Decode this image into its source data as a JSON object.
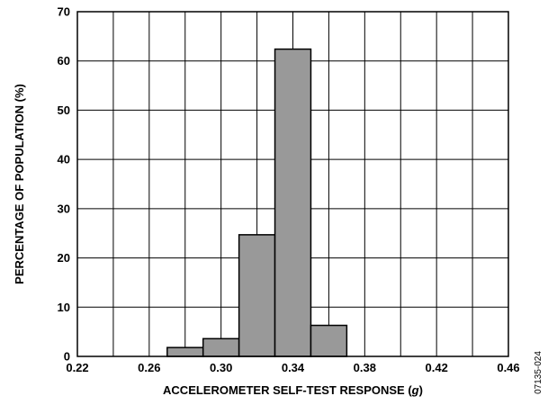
{
  "chart_data": {
    "type": "bar",
    "xlabel_prefix": "ACCELEROMETER SELF-TEST RESPONSE (",
    "xlabel_unit": "g",
    "xlabel_suffix": ")",
    "ylabel": "PERCENTAGE OF POPULATION (%)",
    "xlim": [
      0.22,
      0.46
    ],
    "ylim": [
      0,
      70
    ],
    "x_ticks": [
      0.22,
      0.26,
      0.3,
      0.34,
      0.38,
      0.42,
      0.46
    ],
    "x_tick_labels": [
      "0.22",
      "0.26",
      "0.30",
      "0.34",
      "0.38",
      "0.42",
      "0.46"
    ],
    "y_ticks": [
      0,
      10,
      20,
      30,
      40,
      50,
      60,
      70
    ],
    "y_tick_labels": [
      "0",
      "10",
      "20",
      "30",
      "40",
      "50",
      "60",
      "70"
    ],
    "grid": true,
    "bin_width": 0.02,
    "bins": [
      {
        "start": 0.27,
        "end": 0.29,
        "value": 1.8
      },
      {
        "start": 0.29,
        "end": 0.31,
        "value": 3.6
      },
      {
        "start": 0.31,
        "end": 0.33,
        "value": 24.7
      },
      {
        "start": 0.33,
        "end": 0.35,
        "value": 62.4
      },
      {
        "start": 0.35,
        "end": 0.37,
        "value": 6.3
      }
    ],
    "bar_color": "#999999"
  },
  "figure_code": "07135-024"
}
